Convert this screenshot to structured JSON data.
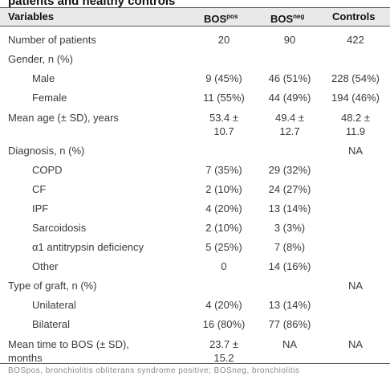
{
  "caption_fragment": "patients and healthy controls",
  "table": {
    "columns": {
      "variables": "Variables",
      "bos_pos_base": "BOS",
      "bos_pos_sup": "pos",
      "bos_neg_base": "BOS",
      "bos_neg_sup": "neg",
      "controls": "Controls"
    },
    "rows": [
      {
        "label": "Number of patients",
        "pos": "20",
        "neg": "90",
        "ctrl": "422"
      },
      {
        "label": "Gender, n (%)",
        "pos": "",
        "neg": "",
        "ctrl": ""
      },
      {
        "label": "Male",
        "pos": "9 (45%)",
        "neg": "46 (51%)",
        "ctrl": "228 (54%)"
      },
      {
        "label": "Female",
        "pos": "11 (55%)",
        "neg": "44 (49%)",
        "ctrl": "194 (46%)"
      },
      {
        "label": "Mean age (± SD), years",
        "pos": "53.4 ±",
        "neg": "49.4 ±",
        "ctrl": "48.2 ±"
      },
      {
        "label": "",
        "pos": "10.7",
        "neg": "12.7",
        "ctrl": "11.9"
      },
      {
        "label": "Diagnosis, n (%)",
        "pos": "",
        "neg": "",
        "ctrl": "NA"
      },
      {
        "label": "COPD",
        "pos": "7 (35%)",
        "neg": "29 (32%)",
        "ctrl": ""
      },
      {
        "label": "CF",
        "pos": "2 (10%)",
        "neg": "24 (27%)",
        "ctrl": ""
      },
      {
        "label": "IPF",
        "pos": "4 (20%)",
        "neg": "13 (14%)",
        "ctrl": ""
      },
      {
        "label": "Sarcoidosis",
        "pos": "2 (10%)",
        "neg": "3 (3%)",
        "ctrl": ""
      },
      {
        "label": "α1 antitrypsin deficiency",
        "pos": "5 (25%)",
        "neg": "7 (8%)",
        "ctrl": ""
      },
      {
        "label": "Other",
        "pos": "0",
        "neg": "14 (16%)",
        "ctrl": ""
      },
      {
        "label": "Type of graft, n (%)",
        "pos": "",
        "neg": "",
        "ctrl": "NA"
      },
      {
        "label": "Unilateral",
        "pos": "4 (20%)",
        "neg": "13 (14%)",
        "ctrl": ""
      },
      {
        "label": "Bilateral",
        "pos": "16 (80%)",
        "neg": "77 (86%)",
        "ctrl": ""
      },
      {
        "label": "Mean time to BOS (± SD),",
        "pos": "23.7 ±",
        "neg": "NA",
        "ctrl": "NA"
      },
      {
        "label": "months",
        "pos": "15.2",
        "neg": "",
        "ctrl": ""
      }
    ]
  },
  "footnote": "BOSpos, bronchiolitis obliterans syndrome positive; BOSneg, bronchiolitis"
}
